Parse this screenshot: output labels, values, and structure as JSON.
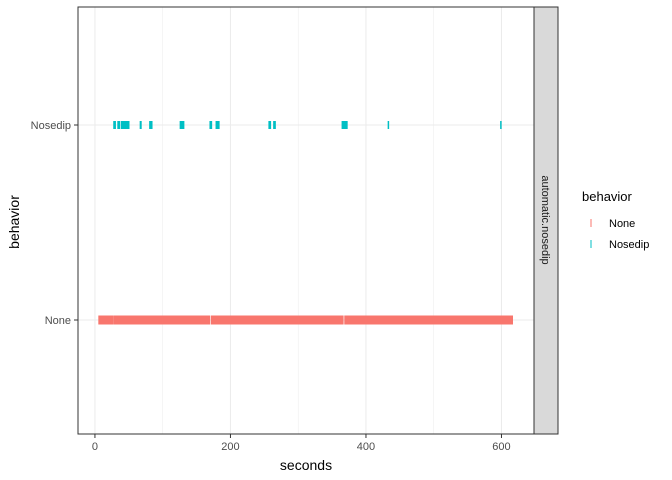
{
  "chart_data": {
    "type": "scatter",
    "xlabel": "seconds",
    "ylabel": "behavior",
    "xlim": [
      -25,
      648
    ],
    "x_ticks": [
      0,
      200,
      400,
      600
    ],
    "categories": [
      "None",
      "Nosedip"
    ],
    "facet_label": "automatic.nosedip",
    "legend": {
      "title": "behavior",
      "placement": "right",
      "entries": [
        {
          "label": "None",
          "color": "#F8766D"
        },
        {
          "label": "Nosedip",
          "color": "#00BFC4"
        }
      ]
    },
    "grid": true,
    "series": [
      {
        "name": "None",
        "category": "None",
        "color": "#F8766D",
        "segments": [
          [
            5,
            27
          ],
          [
            27,
            170
          ],
          [
            171,
            367
          ],
          [
            368,
            617
          ]
        ]
      },
      {
        "name": "Nosedip",
        "category": "Nosedip",
        "color": "#00BFC4",
        "segments": [
          [
            27,
            31
          ],
          [
            33,
            37
          ],
          [
            38,
            51
          ],
          [
            66,
            69
          ],
          [
            80,
            85
          ],
          [
            125,
            132
          ],
          [
            169,
            173
          ],
          [
            178,
            184
          ],
          [
            256,
            260
          ],
          [
            263,
            267
          ],
          [
            364,
            373
          ],
          [
            432,
            434
          ],
          [
            598,
            600
          ]
        ]
      }
    ]
  }
}
